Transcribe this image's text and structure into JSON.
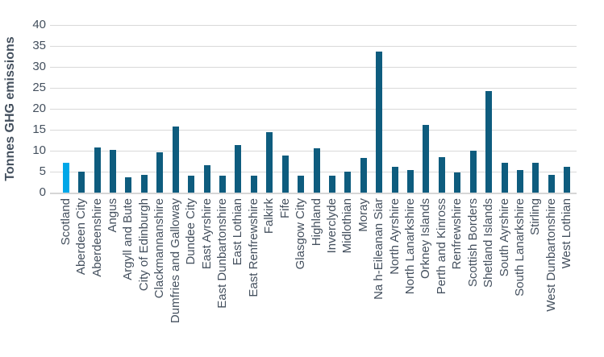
{
  "chart_data": {
    "type": "bar",
    "title": "",
    "xlabel": "",
    "ylabel": "Tonnes GHG emissions",
    "ylim": [
      0,
      40
    ],
    "yticks": [
      0,
      5,
      10,
      15,
      20,
      25,
      30,
      35,
      40
    ],
    "grid": true,
    "legend": "none",
    "highlight_category": "Scotland",
    "categories": [
      "Scotland",
      "Aberdeen City",
      "Aberdeenshire",
      "Angus",
      "Argyll and Bute",
      "City of Edinburgh",
      "Clackmannanshire",
      "Dumfries and Galloway",
      "Dundee City",
      "East Ayrshire",
      "East Dunbartonshire",
      "East Lothian",
      "East Renfrewshire",
      "Falkirk",
      "Fife",
      "Glasgow City",
      "Highland",
      "Inverclyde",
      "Midlothian",
      "Moray",
      "Na h-Eileanan Siar",
      "North Ayrshire",
      "North Lanarkshire",
      "Orkney Islands",
      "Perth and Kinross",
      "Renfrewshire",
      "Scottish Borders",
      "Shetland Islands",
      "South Ayrshire",
      "South Lanarkshire",
      "Stirling",
      "West Dunbartonshire",
      "West Lothian"
    ],
    "values": [
      7.2,
      5.0,
      10.7,
      10.2,
      3.7,
      4.2,
      9.7,
      15.8,
      4.1,
      6.5,
      4.0,
      11.3,
      4.1,
      14.5,
      8.8,
      4.0,
      10.6,
      4.1,
      5.0,
      8.2,
      33.6,
      6.1,
      5.4,
      16.2,
      8.4,
      4.9,
      10.0,
      24.2,
      7.1,
      5.3,
      7.1,
      4.3,
      6.1
    ],
    "colors": {
      "bar": "#0E5C7E",
      "highlight": "#00A7E8",
      "grid": "#D9D9D9",
      "axis_line": "#D6D6D6",
      "text": "#44505E",
      "background": "#FFFFFF"
    }
  }
}
